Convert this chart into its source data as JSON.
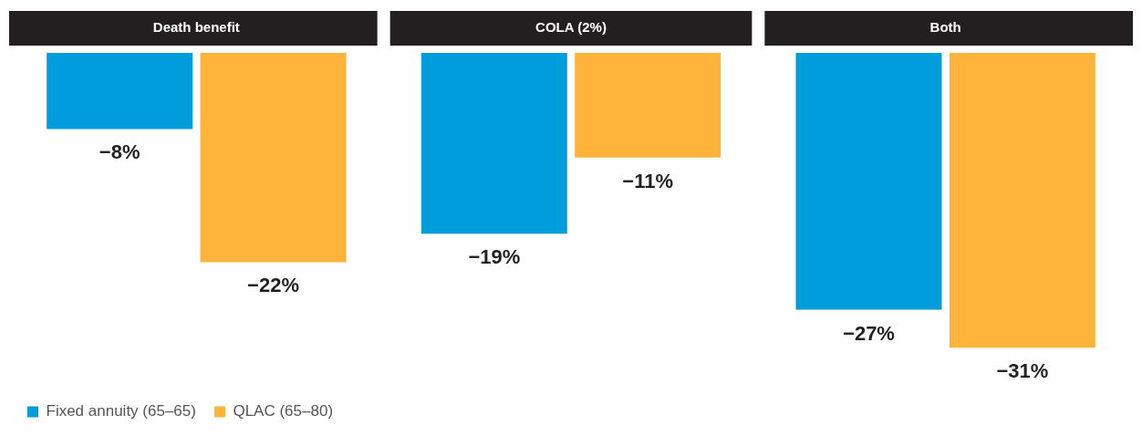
{
  "chart_data": {
    "type": "bar",
    "categories": [
      "Death benefit",
      "COLA (2%)",
      "Both"
    ],
    "series": [
      {
        "name": "Fixed annuity (65–65)",
        "color": "#009ddc",
        "values": [
          -8,
          -19,
          -27
        ],
        "value_labels": [
          "−8%",
          "−19%",
          "−27%"
        ]
      },
      {
        "name": "QLAC (65–80)",
        "color": "#ffb33a",
        "values": [
          -22,
          -11,
          -31
        ],
        "value_labels": [
          "−22%",
          "−11%",
          "−31%"
        ]
      }
    ],
    "legend": "bottom left"
  }
}
